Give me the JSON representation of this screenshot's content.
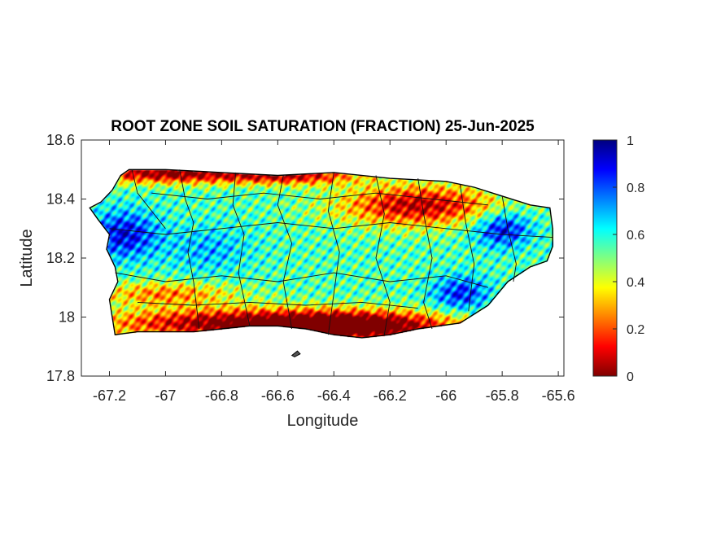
{
  "chart_data": {
    "type": "heatmap",
    "title": "ROOT ZONE SOIL SATURATION (FRACTION) 25-Jun-2025",
    "xlabel": "Longitude",
    "ylabel": "Latitude",
    "xlim": [
      -67.3,
      -65.58
    ],
    "ylim": [
      17.8,
      18.6
    ],
    "x_ticks": [
      -67.2,
      -67,
      -66.8,
      -66.6,
      -66.4,
      -66.2,
      -66,
      -65.8,
      -65.6
    ],
    "x_tick_labels": [
      "-67.2",
      "-67",
      "-66.8",
      "-66.6",
      "-66.4",
      "-66.2",
      "-66",
      "-65.8",
      "-65.6"
    ],
    "y_ticks": [
      17.8,
      18,
      18.2,
      18.4,
      18.6
    ],
    "y_tick_labels": [
      "17.8",
      "18",
      "18.2",
      "18.4",
      "18.6"
    ],
    "colorbar": {
      "range": [
        0,
        1
      ],
      "ticks": [
        0,
        0.2,
        0.4,
        0.6,
        0.8,
        1
      ],
      "tick_labels": [
        "0",
        "0.2",
        "0.4",
        "0.6",
        "0.8",
        "1"
      ],
      "colormap": "jet",
      "colors": [
        "#800000",
        "#ff0000",
        "#ff8000",
        "#ffff00",
        "#80ff80",
        "#00ffff",
        "#0080ff",
        "#0000ff",
        "#000080"
      ]
    },
    "grid": false,
    "region_outline": {
      "island": [
        [
          -67.27,
          18.37
        ],
        [
          -67.23,
          18.39
        ],
        [
          -67.19,
          18.43
        ],
        [
          -67.16,
          18.48
        ],
        [
          -67.13,
          18.5
        ],
        [
          -67.0,
          18.5
        ],
        [
          -66.8,
          18.49
        ],
        [
          -66.6,
          18.48
        ],
        [
          -66.4,
          18.49
        ],
        [
          -66.2,
          18.47
        ],
        [
          -66.0,
          18.46
        ],
        [
          -65.9,
          18.44
        ],
        [
          -65.8,
          18.41
        ],
        [
          -65.7,
          18.38
        ],
        [
          -65.63,
          18.37
        ],
        [
          -65.62,
          18.3
        ],
        [
          -65.62,
          18.24
        ],
        [
          -65.64,
          18.19
        ],
        [
          -65.7,
          18.17
        ],
        [
          -65.78,
          18.12
        ],
        [
          -65.85,
          18.04
        ],
        [
          -65.9,
          18.01
        ],
        [
          -65.95,
          17.98
        ],
        [
          -66.1,
          17.96
        ],
        [
          -66.2,
          17.94
        ],
        [
          -66.3,
          17.93
        ],
        [
          -66.4,
          17.94
        ],
        [
          -66.5,
          17.96
        ],
        [
          -66.6,
          17.97
        ],
        [
          -66.7,
          17.97
        ],
        [
          -66.8,
          17.96
        ],
        [
          -66.9,
          17.95
        ],
        [
          -67.0,
          17.95
        ],
        [
          -67.1,
          17.95
        ],
        [
          -67.18,
          17.94
        ],
        [
          -67.19,
          18.0
        ],
        [
          -67.2,
          18.06
        ],
        [
          -67.17,
          18.12
        ],
        [
          -67.18,
          18.17
        ],
        [
          -67.21,
          18.23
        ],
        [
          -67.2,
          18.28
        ],
        [
          -67.24,
          18.33
        ]
      ],
      "islets": [
        [
          [
            -66.55,
            17.87
          ],
          [
            -66.53,
            17.885
          ],
          [
            -66.52,
            17.875
          ],
          [
            -66.54,
            17.865
          ]
        ]
      ]
    },
    "field": {
      "description_levels": "fraction 0-1",
      "base_saturation": 0.55,
      "anomalies": [
        {
          "lon": -67.0,
          "lat": 18.49,
          "value": -0.55,
          "sx": 0.3,
          "sy": 0.035
        },
        {
          "lon": -66.55,
          "lat": 18.48,
          "value": -0.45,
          "sx": 0.25,
          "sy": 0.03
        },
        {
          "lon": -66.1,
          "lat": 18.38,
          "value": -0.5,
          "sx": 0.28,
          "sy": 0.07
        },
        {
          "lon": -66.75,
          "lat": 17.98,
          "value": -0.55,
          "sx": 0.5,
          "sy": 0.05
        },
        {
          "lon": -66.3,
          "lat": 17.97,
          "value": -0.55,
          "sx": 0.35,
          "sy": 0.05
        },
        {
          "lon": -67.0,
          "lat": 18.08,
          "value": -0.3,
          "sx": 0.25,
          "sy": 0.04
        },
        {
          "lon": -67.15,
          "lat": 18.28,
          "value": 0.35,
          "sx": 0.12,
          "sy": 0.08
        },
        {
          "lon": -66.85,
          "lat": 18.23,
          "value": 0.15,
          "sx": 0.15,
          "sy": 0.08
        },
        {
          "lon": -65.8,
          "lat": 18.3,
          "value": 0.35,
          "sx": 0.1,
          "sy": 0.06
        },
        {
          "lon": -65.95,
          "lat": 18.08,
          "value": 0.3,
          "sx": 0.1,
          "sy": 0.06
        }
      ],
      "noise_amplitude": 0.12
    }
  }
}
